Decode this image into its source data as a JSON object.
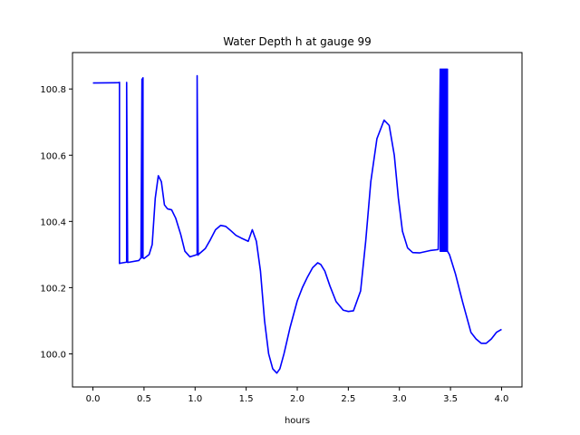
{
  "chart_data": {
    "type": "line",
    "title": "Water Depth h at gauge 99",
    "xlabel": "hours",
    "ylabel": "",
    "xlim": [
      -0.2,
      4.2
    ],
    "ylim": [
      99.9,
      100.91
    ],
    "xticks": [
      0.0,
      0.5,
      1.0,
      1.5,
      2.0,
      2.5,
      3.0,
      3.5,
      4.0
    ],
    "xtick_labels": [
      "0.0",
      "0.5",
      "1.0",
      "1.5",
      "2.0",
      "2.5",
      "3.0",
      "3.5",
      "4.0"
    ],
    "yticks": [
      100.0,
      100.2,
      100.4,
      100.6,
      100.8
    ],
    "ytick_labels": [
      "100.0",
      "100.2",
      "100.4",
      "100.6",
      "100.8"
    ],
    "grid": false,
    "legend": "none",
    "series": [
      {
        "color": "#0000ff",
        "x": [
          0.0,
          0.25,
          0.26,
          0.26,
          0.27,
          0.33,
          0.33,
          0.34,
          0.45,
          0.47,
          0.48,
          0.48,
          0.49,
          0.49,
          0.5,
          0.55,
          0.58,
          0.61,
          0.64,
          0.67,
          0.7,
          0.73,
          0.77,
          0.81,
          0.86,
          0.9,
          0.95,
          1.0,
          1.02,
          1.02,
          1.03,
          1.03,
          1.04,
          1.1,
          1.15,
          1.2,
          1.25,
          1.3,
          1.35,
          1.4,
          1.45,
          1.52,
          1.56,
          1.6,
          1.64,
          1.68,
          1.72,
          1.76,
          1.8,
          1.83,
          1.87,
          1.93,
          2.0,
          2.05,
          2.1,
          2.15,
          2.2,
          2.23,
          2.27,
          2.32,
          2.38,
          2.45,
          2.5,
          2.55,
          2.62,
          2.67,
          2.72,
          2.78,
          2.85,
          2.9,
          2.95,
          2.99,
          3.03,
          3.08,
          3.13,
          3.2,
          3.3,
          3.38,
          3.4,
          3.4,
          3.41,
          3.41,
          3.42,
          3.42,
          3.43,
          3.43,
          3.44,
          3.44,
          3.45,
          3.45,
          3.46,
          3.46,
          3.47,
          3.47,
          3.49,
          3.55,
          3.62,
          3.7,
          3.75,
          3.8,
          3.85,
          3.9,
          3.95,
          4.0
        ],
        "y": [
          100.818,
          100.819,
          100.82,
          100.273,
          100.274,
          100.277,
          100.82,
          100.276,
          100.282,
          100.29,
          100.83,
          100.29,
          100.834,
          100.29,
          100.288,
          100.3,
          100.33,
          100.47,
          100.538,
          100.52,
          100.45,
          100.438,
          100.435,
          100.41,
          100.36,
          100.31,
          100.293,
          100.298,
          100.3,
          100.84,
          100.298,
          100.3,
          100.302,
          100.318,
          100.345,
          100.375,
          100.388,
          100.385,
          100.372,
          100.358,
          100.35,
          100.34,
          100.375,
          100.34,
          100.25,
          100.1,
          100.0,
          99.955,
          99.942,
          99.955,
          100.0,
          100.08,
          100.16,
          100.2,
          100.232,
          100.26,
          100.275,
          100.27,
          100.25,
          100.205,
          100.158,
          100.132,
          100.128,
          100.13,
          100.19,
          100.34,
          100.52,
          100.65,
          100.706,
          100.69,
          100.6,
          100.47,
          100.37,
          100.32,
          100.306,
          100.305,
          100.312,
          100.315,
          100.86,
          100.31,
          100.86,
          100.31,
          100.86,
          100.31,
          100.86,
          100.31,
          100.86,
          100.31,
          100.86,
          100.31,
          100.86,
          100.31,
          100.86,
          100.31,
          100.3,
          100.24,
          100.155,
          100.065,
          100.045,
          100.032,
          100.032,
          100.045,
          100.065,
          100.074
        ]
      }
    ]
  }
}
